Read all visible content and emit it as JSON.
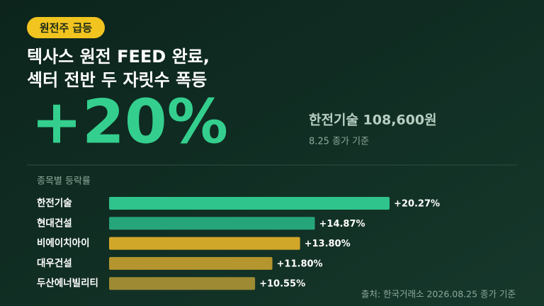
{
  "badge": "원전주 급등",
  "headline": [
    "텍사스 원전 FEED 완료,",
    "섹터 전반 두 자릿수 폭등"
  ],
  "big_figure": "+20%",
  "highlight": {
    "name_price": "한전기술 108,600원",
    "note": "8.25 종가 기준"
  },
  "chart_data": {
    "type": "bar",
    "orientation": "horizontal",
    "title": "종목별 등락률",
    "categories": [
      "한전기술",
      "현대건설",
      "비에이치아이",
      "대우건설",
      "두산에너빌리티"
    ],
    "values": [
      20.27,
      14.87,
      13.8,
      11.8,
      10.55
    ],
    "value_labels": [
      "+20.27%",
      "+14.87%",
      "+13.80%",
      "+11.80%",
      "+10.55%"
    ],
    "colors": [
      "#2fc48c",
      "#27a57a",
      "#d1a72a",
      "#b4952e",
      "#9d8a33"
    ],
    "source": "출처: 한국거래소 2026.08.25 종가 기준"
  }
}
